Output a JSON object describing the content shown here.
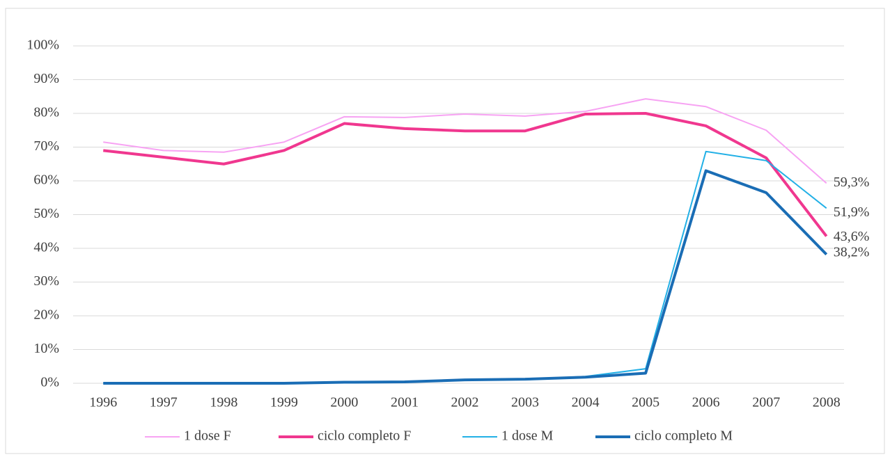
{
  "chart_data": {
    "type": "line",
    "categories": [
      "1996",
      "1997",
      "1998",
      "1999",
      "2000",
      "2001",
      "2002",
      "2003",
      "2004",
      "2005",
      "2006",
      "2007",
      "2008"
    ],
    "series": [
      {
        "name": "1 dose F",
        "color": "#f7a3f3",
        "width": 2,
        "values": [
          71.5,
          69,
          68.5,
          71.5,
          79,
          78.8,
          79.8,
          79.2,
          80.6,
          84.3,
          82,
          75,
          59.3
        ],
        "value_labels": [
          null,
          null,
          null,
          null,
          null,
          null,
          null,
          null,
          null,
          null,
          null,
          null,
          "59,3%"
        ]
      },
      {
        "name": "ciclo completo F",
        "color": "#f0378f",
        "width": 4,
        "values": [
          69,
          67,
          65,
          69,
          77,
          75.5,
          74.8,
          74.8,
          79.8,
          80,
          76.3,
          66.8,
          43.6
        ],
        "value_labels": [
          null,
          null,
          null,
          null,
          null,
          null,
          null,
          null,
          null,
          null,
          null,
          null,
          "43,6%"
        ]
      },
      {
        "name": "1 dose M",
        "color": "#22b0e6",
        "width": 2,
        "values": [
          0,
          0,
          0,
          0,
          0.3,
          0.4,
          1,
          1.2,
          2,
          4.3,
          68.7,
          66,
          51.9
        ],
        "value_labels": [
          null,
          null,
          null,
          null,
          null,
          null,
          null,
          null,
          null,
          null,
          null,
          null,
          "51,9%"
        ]
      },
      {
        "name": "ciclo completo M",
        "color": "#1a6db5",
        "width": 4,
        "values": [
          0,
          0,
          0,
          0,
          0.3,
          0.4,
          1,
          1.2,
          1.8,
          3,
          63,
          56.5,
          38.2
        ],
        "value_labels": [
          null,
          null,
          null,
          null,
          null,
          null,
          null,
          null,
          null,
          null,
          null,
          null,
          "38,2%"
        ]
      }
    ],
    "ylim": [
      0,
      100
    ],
    "yticks": [
      {
        "value": 0,
        "label": "0%"
      },
      {
        "value": 10,
        "label": "10%"
      },
      {
        "value": 20,
        "label": "20%"
      },
      {
        "value": 30,
        "label": "30%"
      },
      {
        "value": 40,
        "label": "40%"
      },
      {
        "value": 50,
        "label": "50%"
      },
      {
        "value": 60,
        "label": "60%"
      },
      {
        "value": 70,
        "label": "70%"
      },
      {
        "value": 80,
        "label": "80%"
      },
      {
        "value": 90,
        "label": "90%"
      },
      {
        "value": 100,
        "label": "100%"
      }
    ],
    "grid": true,
    "legend": "bottom"
  }
}
